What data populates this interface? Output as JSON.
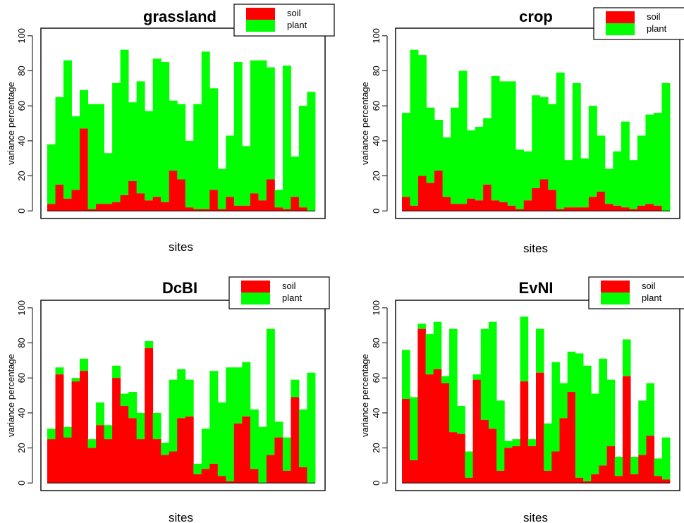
{
  "colors": {
    "soil": "#ff0000",
    "plant": "#00ff00",
    "axis": "#000000"
  },
  "chart_data": [
    {
      "type": "bar",
      "stacked": true,
      "title": "grassland",
      "xlabel": "sites",
      "ylabel": "variance percentage",
      "ylim": [
        0,
        100
      ],
      "yticks": [
        "0",
        "20",
        "40",
        "60",
        "80",
        "100"
      ],
      "legend": [
        "soil",
        "plant"
      ],
      "legend_position": "top-right",
      "series": [
        {
          "name": "soil",
          "values": [
            4,
            15,
            7,
            12,
            47,
            1,
            4,
            4,
            5,
            9,
            17,
            10,
            6,
            8,
            5,
            23,
            18,
            2,
            1,
            1,
            12,
            1,
            8,
            3,
            3,
            10,
            6,
            18,
            2,
            1,
            8,
            2,
            0
          ]
        },
        {
          "name": "plant",
          "values": [
            34,
            50,
            79,
            42,
            22,
            60,
            57,
            29,
            68,
            83,
            45,
            64,
            51,
            79,
            80,
            40,
            43,
            38,
            60,
            90,
            58,
            23,
            35,
            82,
            34,
            76,
            80,
            64,
            10,
            82,
            23,
            58,
            68
          ]
        }
      ]
    },
    {
      "type": "bar",
      "stacked": true,
      "title": "crop",
      "xlabel": "sites",
      "ylabel": "variance percentage",
      "ylim": [
        0,
        100
      ],
      "yticks": [
        "0",
        "20",
        "40",
        "60",
        "80",
        "100"
      ],
      "legend": [
        "soil",
        "plant"
      ],
      "legend_position": "top-right",
      "series": [
        {
          "name": "soil",
          "values": [
            8,
            3,
            20,
            16,
            23,
            8,
            4,
            4,
            7,
            6,
            15,
            6,
            5,
            3,
            1,
            6,
            13,
            18,
            12,
            1,
            2,
            2,
            2,
            8,
            11,
            4,
            3,
            2,
            1,
            3,
            4,
            3,
            0
          ]
        },
        {
          "name": "plant",
          "values": [
            48,
            89,
            69,
            43,
            29,
            34,
            55,
            76,
            39,
            42,
            38,
            71,
            69,
            71,
            34,
            28,
            53,
            47,
            49,
            78,
            27,
            71,
            28,
            52,
            32,
            20,
            31,
            49,
            28,
            40,
            51,
            53,
            73
          ]
        }
      ]
    },
    {
      "type": "bar",
      "stacked": true,
      "title": "DcBI",
      "xlabel": "sites",
      "ylabel": "variance percentage",
      "ylim": [
        0,
        100
      ],
      "yticks": [
        "0",
        "20",
        "40",
        "60",
        "80",
        "100"
      ],
      "legend": [
        "soil",
        "plant"
      ],
      "legend_position": "top-right",
      "series": [
        {
          "name": "soil",
          "values": [
            25,
            62,
            26,
            58,
            64,
            20,
            33,
            25,
            60,
            44,
            37,
            25,
            77,
            25,
            16,
            18,
            37,
            38,
            5,
            8,
            11,
            4,
            1,
            34,
            38,
            8,
            0,
            16,
            26,
            7,
            49,
            9,
            0
          ]
        },
        {
          "name": "plant",
          "values": [
            6,
            4,
            6,
            2,
            7,
            5,
            13,
            8,
            7,
            7,
            15,
            15,
            4,
            15,
            7,
            41,
            28,
            21,
            6,
            23,
            53,
            42,
            65,
            32,
            31,
            34,
            32,
            72,
            9,
            19,
            10,
            33,
            63
          ]
        }
      ]
    },
    {
      "type": "bar",
      "stacked": true,
      "title": "EvNI",
      "xlabel": "sites",
      "ylabel": "variance percentage",
      "ylim": [
        0,
        100
      ],
      "yticks": [
        "0",
        "20",
        "40",
        "60",
        "80",
        "100"
      ],
      "legend": [
        "soil",
        "plant"
      ],
      "legend_position": "top-right",
      "series": [
        {
          "name": "soil",
          "values": [
            48,
            13,
            88,
            62,
            65,
            57,
            29,
            28,
            3,
            59,
            36,
            31,
            7,
            20,
            21,
            58,
            21,
            63,
            7,
            18,
            37,
            52,
            3,
            1,
            5,
            10,
            21,
            4,
            61,
            5,
            16,
            27,
            4,
            2
          ]
        },
        {
          "name": "plant",
          "values": [
            28,
            36,
            3,
            23,
            27,
            4,
            59,
            16,
            15,
            3,
            52,
            61,
            40,
            4,
            4,
            37,
            4,
            25,
            27,
            51,
            20,
            23,
            71,
            66,
            46,
            61,
            38,
            11,
            21,
            10,
            31,
            30,
            10,
            24
          ]
        }
      ]
    }
  ]
}
